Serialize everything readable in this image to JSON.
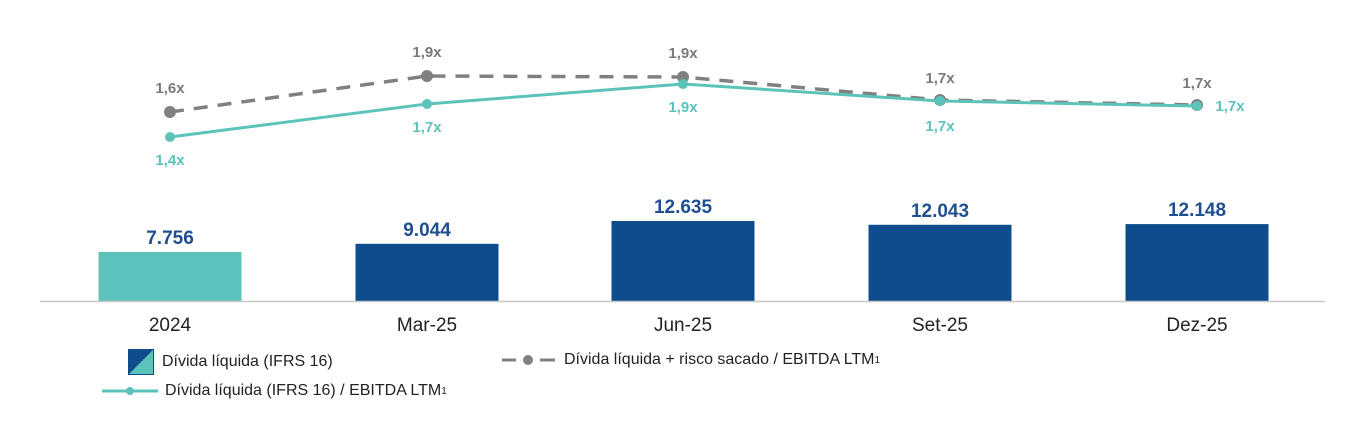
{
  "chart_data": {
    "type": "bar+line",
    "title": "",
    "xlabel": "",
    "ylabel": "",
    "categories": [
      "2024",
      "Mar-25",
      "Jun-25",
      "Set-25",
      "Dez-25"
    ],
    "grid": false,
    "legend_position": "bottom-left",
    "series": [
      {
        "name": "Dívida líquida (IFRS 16)",
        "kind": "bar",
        "values": [
          7756,
          9044,
          12635,
          12043,
          12148
        ],
        "labels": [
          "7.756",
          "9.044",
          "12.635",
          "12.043",
          "12.148"
        ],
        "colors": [
          "#5CC3BA",
          "#0E4C8E",
          "#0E4C8E",
          "#0E4C8E",
          "#0E4C8E"
        ]
      },
      {
        "name": "Dívida líquida + risco sacado / EBITDA LTM",
        "superscript": "1",
        "kind": "line",
        "style": "dashed",
        "color": "#808080",
        "values": [
          1.6,
          1.9,
          1.9,
          1.7,
          1.7
        ],
        "labels": [
          "1,6x",
          "1,9x",
          "1,9x",
          "1,7x",
          "1,7x"
        ]
      },
      {
        "name": "Dívida líquida (IFRS 16) / EBITDA LTM",
        "superscript": "1",
        "kind": "line",
        "style": "solid",
        "color": "#5CC3BA",
        "values": [
          1.4,
          1.7,
          1.9,
          1.7,
          1.7
        ],
        "labels": [
          "1,4x",
          "1,7x",
          "1,9x",
          "1,7x",
          "1,7x"
        ]
      }
    ]
  },
  "legend": {
    "bar": "Dívida líquida (IFRS 16)",
    "gray_line": "Dívida líquida + risco sacado / EBITDA LTM",
    "gray_sup": "1",
    "teal_line": "Dívida líquida (IFRS 16) / EBITDA LTM",
    "teal_sup": "1"
  }
}
